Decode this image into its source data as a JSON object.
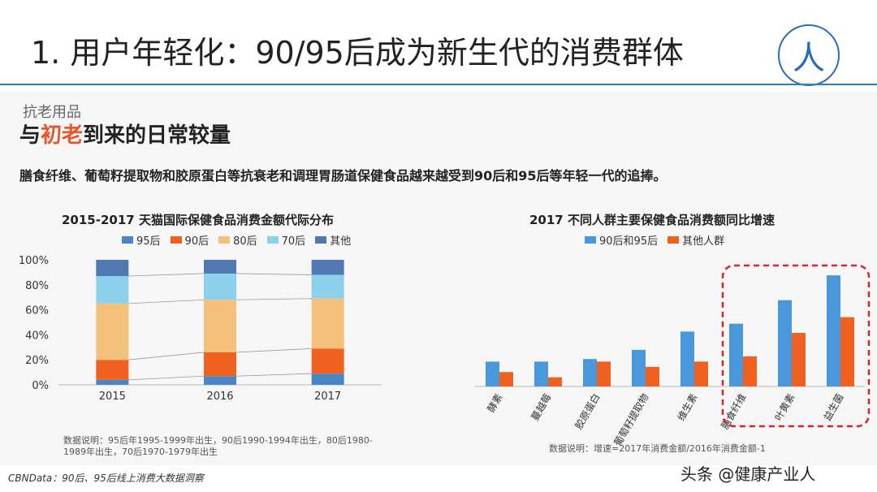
{
  "header": {
    "title": "1. 用户年轻化：90/95后成为新生代的消费群体",
    "badge": "人"
  },
  "section": {
    "label": "抗老用品",
    "heading_prefix": "与",
    "heading_highlight": "初老",
    "heading_suffix": "到来的日常较量",
    "intro": "膳食纤维、葡萄籽提取物和胶原蛋白等抗衰老和调理胃肠道保健食品越来越受到90后和95后等年轻一代的追捧。"
  },
  "colors": {
    "c95": "#4a86c5",
    "c90": "#f0601e",
    "c80": "#f5c07a",
    "c70": "#8dd0ec",
    "other": "#4f79b0",
    "young": "#4a97dc",
    "others_group": "#f0601e",
    "highlight": "#d9242a"
  },
  "chart_data": [
    {
      "type": "bar",
      "stacked": true,
      "title": "2015-2017 天猫国际保健食品消费金额代际分布",
      "categories": [
        "2015",
        "2016",
        "2017"
      ],
      "series": [
        {
          "name": "95后",
          "values": [
            4,
            7,
            9
          ]
        },
        {
          "name": "90后",
          "values": [
            16,
            19,
            20
          ]
        },
        {
          "name": "80后",
          "values": [
            45,
            42,
            40
          ]
        },
        {
          "name": "70后",
          "values": [
            22,
            21,
            19
          ]
        },
        {
          "name": "其他",
          "values": [
            13,
            11,
            12
          ]
        }
      ],
      "ylim": [
        0,
        100
      ],
      "yticks": [
        "0%",
        "20%",
        "40%",
        "60%",
        "80%",
        "100%"
      ],
      "note": "数据说明：95后年1995-1999年出生，90后1990-1994年出生，80后1980-1989年出生，70后1970-1979年出生"
    },
    {
      "type": "bar",
      "title": "2017 不同人群主要保健食品消费额同比增速",
      "categories": [
        "酵素",
        "蔓越莓",
        "胶原蛋白",
        "葡萄籽提取物",
        "维生素",
        "膳食纤维",
        "叶黄素",
        "益生菌"
      ],
      "series": [
        {
          "name": "90后和95后",
          "values": [
            19,
            19,
            21,
            28,
            42,
            48,
            66,
            85
          ]
        },
        {
          "name": "其他人群",
          "values": [
            11,
            7,
            19,
            15,
            19,
            23,
            41,
            53
          ]
        }
      ],
      "ylim": [
        0,
        100
      ],
      "highlighted_categories": [
        "膳食纤维",
        "叶黄素",
        "益生菌"
      ],
      "note": "数据说明：增速=2017年消费金额/2016年消费金额-1"
    }
  ],
  "footer": {
    "source": "CBNData：90后、95后线上消费大数据洞察",
    "credit": "头条 @健康产业人"
  }
}
